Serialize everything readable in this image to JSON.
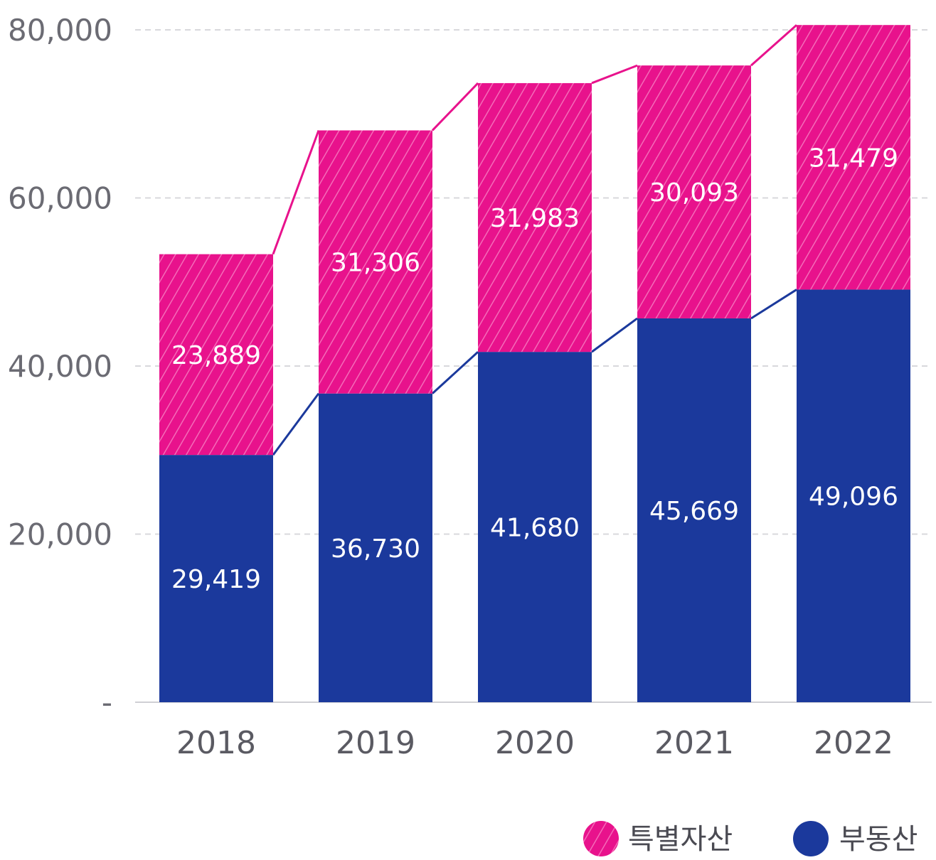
{
  "chart_data": {
    "type": "bar",
    "stacked": true,
    "categories": [
      "2018",
      "2019",
      "2020",
      "2021",
      "2022"
    ],
    "series": [
      {
        "name": "부동산",
        "values": [
          29419,
          36730,
          41680,
          45669,
          49096
        ],
        "color": "#1b399c",
        "pattern": "solid"
      },
      {
        "name": "특별자산",
        "values": [
          23889,
          31306,
          31983,
          30093,
          31479
        ],
        "color": "#e8128c",
        "pattern": "diagonal-hatch"
      }
    ],
    "data_labels": {
      "부동산": [
        "29,419",
        "36,730",
        "41,680",
        "45,669",
        "49,096"
      ],
      "특별자산": [
        "23,889",
        "31,306",
        "31,983",
        "30,093",
        "31,479"
      ]
    },
    "yticks": [
      0,
      20000,
      40000,
      60000,
      80000
    ],
    "ytick_labels": [
      "-",
      "20,000",
      "40,000",
      "60,000",
      "80,000"
    ],
    "ylim": [
      0,
      80000
    ],
    "grid": "horizontal-dashed",
    "connector_lines": true,
    "legend_position": "bottom-right",
    "title": "",
    "xlabel": "",
    "ylabel": ""
  }
}
